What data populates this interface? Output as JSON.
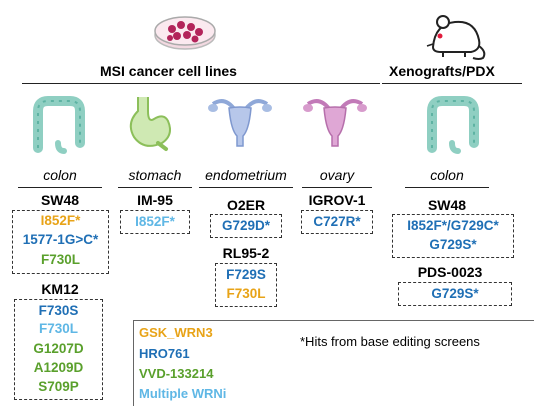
{
  "headers": {
    "msi": "MSI cancer cell lines",
    "xeno": "Xenografts/PDX"
  },
  "tissues": {
    "colon1": "colon",
    "stomach": "stomach",
    "endometrium": "endometrium",
    "ovary": "ovary",
    "colon2": "colon"
  },
  "cell_lines": {
    "sw48": {
      "name": "SW48",
      "mutations": [
        "I852F*",
        "1577-1G>C*",
        "F730L"
      ]
    },
    "km12": {
      "name": "KM12",
      "mutations": [
        "F730S",
        "F730L",
        "G1207D",
        "A1209D",
        "S709P"
      ]
    },
    "im95": {
      "name": "IM-95",
      "mutations": [
        "I852F*"
      ]
    },
    "o2er": {
      "name": "O2ER",
      "mutations": [
        "G729D*"
      ]
    },
    "rl952": {
      "name": "RL95-2",
      "mutations": [
        "F729S",
        "F730L"
      ]
    },
    "igrov1": {
      "name": "IGROV-1",
      "mutations": [
        "C727R*"
      ]
    },
    "sw48_xeno": {
      "name": "SW48",
      "mutations": [
        "I852F*/G729C*",
        "G729S*"
      ]
    },
    "pds0023": {
      "name": "PDS-0023",
      "mutations": [
        "G729S*"
      ]
    }
  },
  "legend": {
    "items": [
      "GSK_WRN3",
      "HRO761",
      "VVD-133214",
      "Multiple WRNi"
    ],
    "note": "*Hits from base editing screens"
  },
  "colors": {
    "gsk": "#e8a317",
    "hro": "#1f6fb5",
    "vvd": "#5aa02c",
    "multi": "#5fb7e5"
  },
  "icons": [
    "petri-dish-icon",
    "mouse-icon",
    "colon-icon",
    "stomach-icon",
    "uterus-icon",
    "ovary-icon"
  ]
}
